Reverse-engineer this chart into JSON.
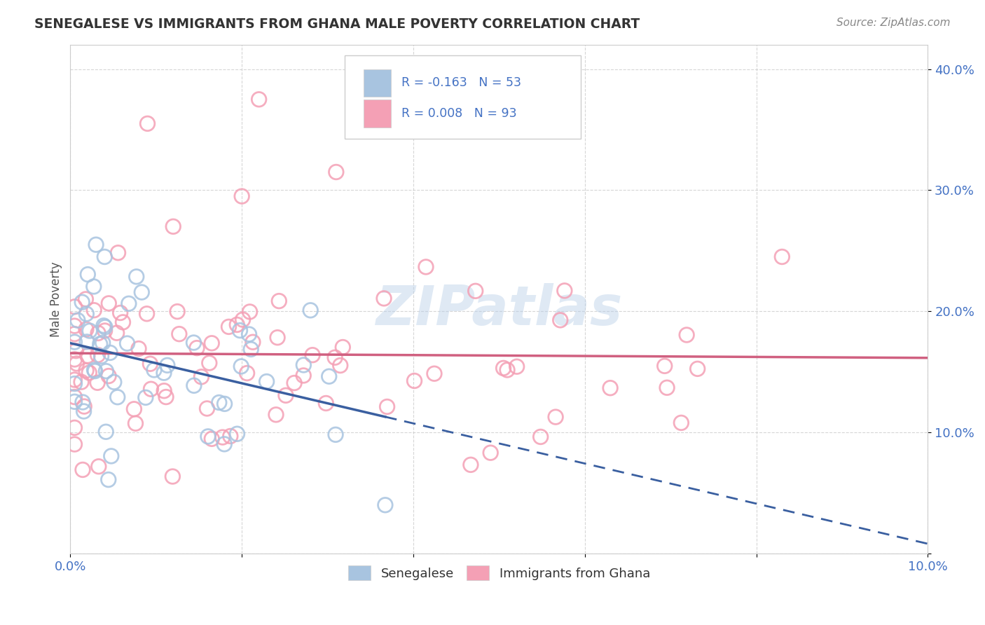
{
  "title": "SENEGALESE VS IMMIGRANTS FROM GHANA MALE POVERTY CORRELATION CHART",
  "source": "Source: ZipAtlas.com",
  "ylabel": "Male Poverty",
  "xlim": [
    0.0,
    0.1
  ],
  "ylim": [
    0.0,
    0.42
  ],
  "x_tick_vals": [
    0.0,
    0.02,
    0.04,
    0.06,
    0.08,
    0.1
  ],
  "x_tick_labels": [
    "0.0%",
    "",
    "",
    "",
    "",
    "10.0%"
  ],
  "y_tick_vals": [
    0.0,
    0.1,
    0.2,
    0.3,
    0.4
  ],
  "y_tick_labels": [
    "",
    "10.0%",
    "20.0%",
    "30.0%",
    "40.0%"
  ],
  "grid_color": "#cccccc",
  "background_color": "#ffffff",
  "senegalese_marker_color": "#a8c4e0",
  "ghana_marker_color": "#f4a0b5",
  "senegalese_line_color": "#3a5fa0",
  "ghana_line_color": "#d06080",
  "watermark_text": "ZIPatlas",
  "legend_label_senegalese": "Senegalese",
  "legend_label_ghana": "Immigrants from Ghana",
  "legend_R_senegalese": "R = -0.163",
  "legend_N_senegalese": "N = 53",
  "legend_R_ghana": "R = 0.008",
  "legend_N_ghana": "N = 93",
  "blue_text_color": "#4472c4",
  "title_color": "#333333",
  "source_color": "#888888"
}
